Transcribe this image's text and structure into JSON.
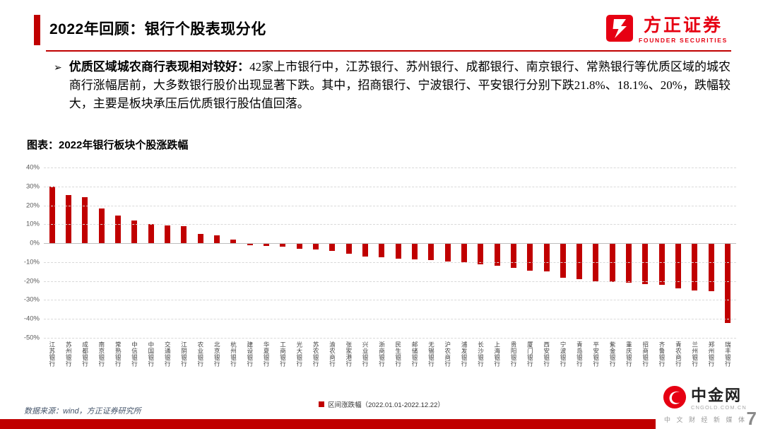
{
  "colors": {
    "accent": "#C00000",
    "logo_red": "#E60012"
  },
  "header": {
    "title": "2022年回顾：银行个股表现分化",
    "logo_cn": "方正证券",
    "logo_en": "FOUNDER SECURITIES"
  },
  "bullet": {
    "marker": "➢",
    "lead": "优质区域城农商行表现相对较好：",
    "body": "42家上市银行中，江苏银行、苏州银行、成都银行、南京银行、常熟银行等优质区域的城农商行涨幅居前，大多数银行股价出现显著下跌。其中，招商银行、宁波银行、平安银行分别下跌21.8%、18.1%、20%，跌幅较大，主要是板块承压后优质银行股估值回落。"
  },
  "chart": {
    "heading": "图表：2022年银行板块个股涨跌幅"
  },
  "chart_data": {
    "type": "bar",
    "title": "2022年银行板块个股涨跌幅",
    "legend": "区间涨跌幅（2022.01.01-2022.12.22）",
    "legend_position": "bottom",
    "grid": "horizontal-dashed",
    "unit": "%",
    "bar_color": "#C00000",
    "ylim": [
      -50,
      40
    ],
    "ytick_labels": [
      "40%",
      "30%",
      "20%",
      "10%",
      "0%",
      "-10%",
      "-20%",
      "-30%",
      "-40%",
      "-50%"
    ],
    "categories": [
      "江苏银行",
      "苏州银行",
      "成都银行",
      "南京银行",
      "常熟银行",
      "中信银行",
      "中国银行",
      "交通银行",
      "江阴银行",
      "农业银行",
      "北京银行",
      "杭州银行",
      "建设银行",
      "华夏银行",
      "工商银行",
      "光大银行",
      "苏农银行",
      "渝农商行",
      "张家港行",
      "兴业银行",
      "浙商银行",
      "民生银行",
      "邮储银行",
      "无锡银行",
      "沪农商行",
      "浦发银行",
      "长沙银行",
      "上海银行",
      "贵阳银行",
      "厦门银行",
      "西安银行",
      "宁波银行",
      "青岛银行",
      "平安银行",
      "紫金银行",
      "重庆银行",
      "招商银行",
      "齐鲁银行",
      "青农商行",
      "兰州银行",
      "郑州银行",
      "瑞丰银行"
    ],
    "values": [
      30,
      25.5,
      24.5,
      18.5,
      14.5,
      12,
      10,
      9.5,
      9,
      5,
      4,
      2,
      -1,
      -1.5,
      -2,
      -3,
      -3.5,
      -4,
      -5.5,
      -7,
      -7.5,
      -8,
      -8.5,
      -9,
      -9.5,
      -10,
      -11,
      -12,
      -13,
      -14.5,
      -15,
      -18.1,
      -19,
      -20,
      -20.5,
      -21,
      -21.8,
      -22,
      -24,
      -25,
      -25.5,
      -42
    ]
  },
  "footer": {
    "source": "数据来源：wind，方正证券研究所",
    "page": "7"
  },
  "watermark": {
    "name": "中金网",
    "domain": "CNGOLD.COM.CN",
    "tagline": "中 文 财 经 新 媒 体"
  }
}
